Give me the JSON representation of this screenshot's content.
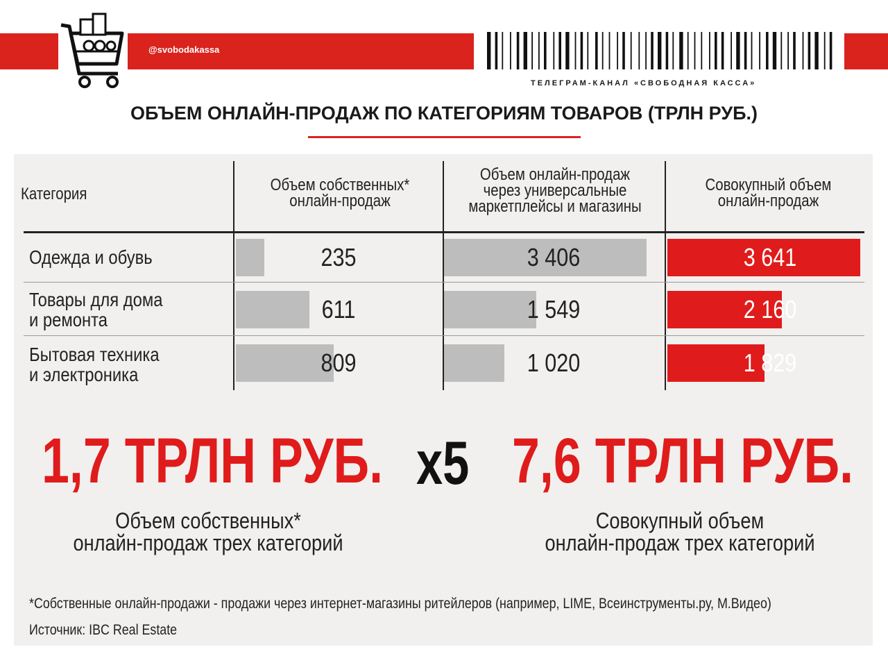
{
  "header": {
    "handle": "@svobodakassa",
    "channel": "ТЕЛЕГРАМ-КАНАЛ «СВОБОДНАЯ КАССА»",
    "title": "ОБЪЕМ ОНЛАЙН-ПРОДАЖ ПО КАТЕГОРИЯМ ТОВАРОВ (ТРЛН РУБ.)"
  },
  "colors": {
    "accent": "#d9231c",
    "bar_gray": "#bdbdbd",
    "bar_red": "#e01b1b",
    "panel": "#f1f0ee"
  },
  "table": {
    "columns": [
      "Категория",
      "Объем собственных*\nонлайн-продаж",
      "Объем онлайн-продаж\nчерез универсальные\nмаркетплейсы и магазины",
      "Совокупный объем\nонлайн-продаж"
    ]
  },
  "chart_data": {
    "type": "table",
    "categories": [
      "Одежда и обувь",
      "Товары для дома\nи ремонта",
      "Бытовая техника\nи электроника"
    ],
    "series": [
      {
        "name": "Объем собственных* онлайн-продаж",
        "values": [
          235,
          611,
          809
        ],
        "labels": [
          "235",
          "611",
          "809"
        ]
      },
      {
        "name": "Объем онлайн-продаж через универсальные маркетплейсы и магазины",
        "values": [
          3406,
          1549,
          1020
        ],
        "labels": [
          "3 406",
          "1 549",
          "1 020"
        ]
      },
      {
        "name": "Совокупный объем онлайн-продаж",
        "values": [
          3641,
          2160,
          1829
        ],
        "labels": [
          "3 641",
          "2 160",
          "1 829"
        ]
      }
    ]
  },
  "summary": {
    "left_value": "1,7 ТРЛН РУБ.",
    "multiplier": "x5",
    "right_value": "7,6 ТРЛН РУБ.",
    "left_caption": "Объем собственных*\nонлайн-продаж трех категорий",
    "right_caption": "Совокупный объем\nонлайн-продаж трех категорий"
  },
  "footnote": "*Собственные онлайн-продажи - продажи через интернет-магазины ритейлеров (например, LIME, Всеинструменты.ру, М.Видео)",
  "source": "Источник: IBC Real Estate"
}
